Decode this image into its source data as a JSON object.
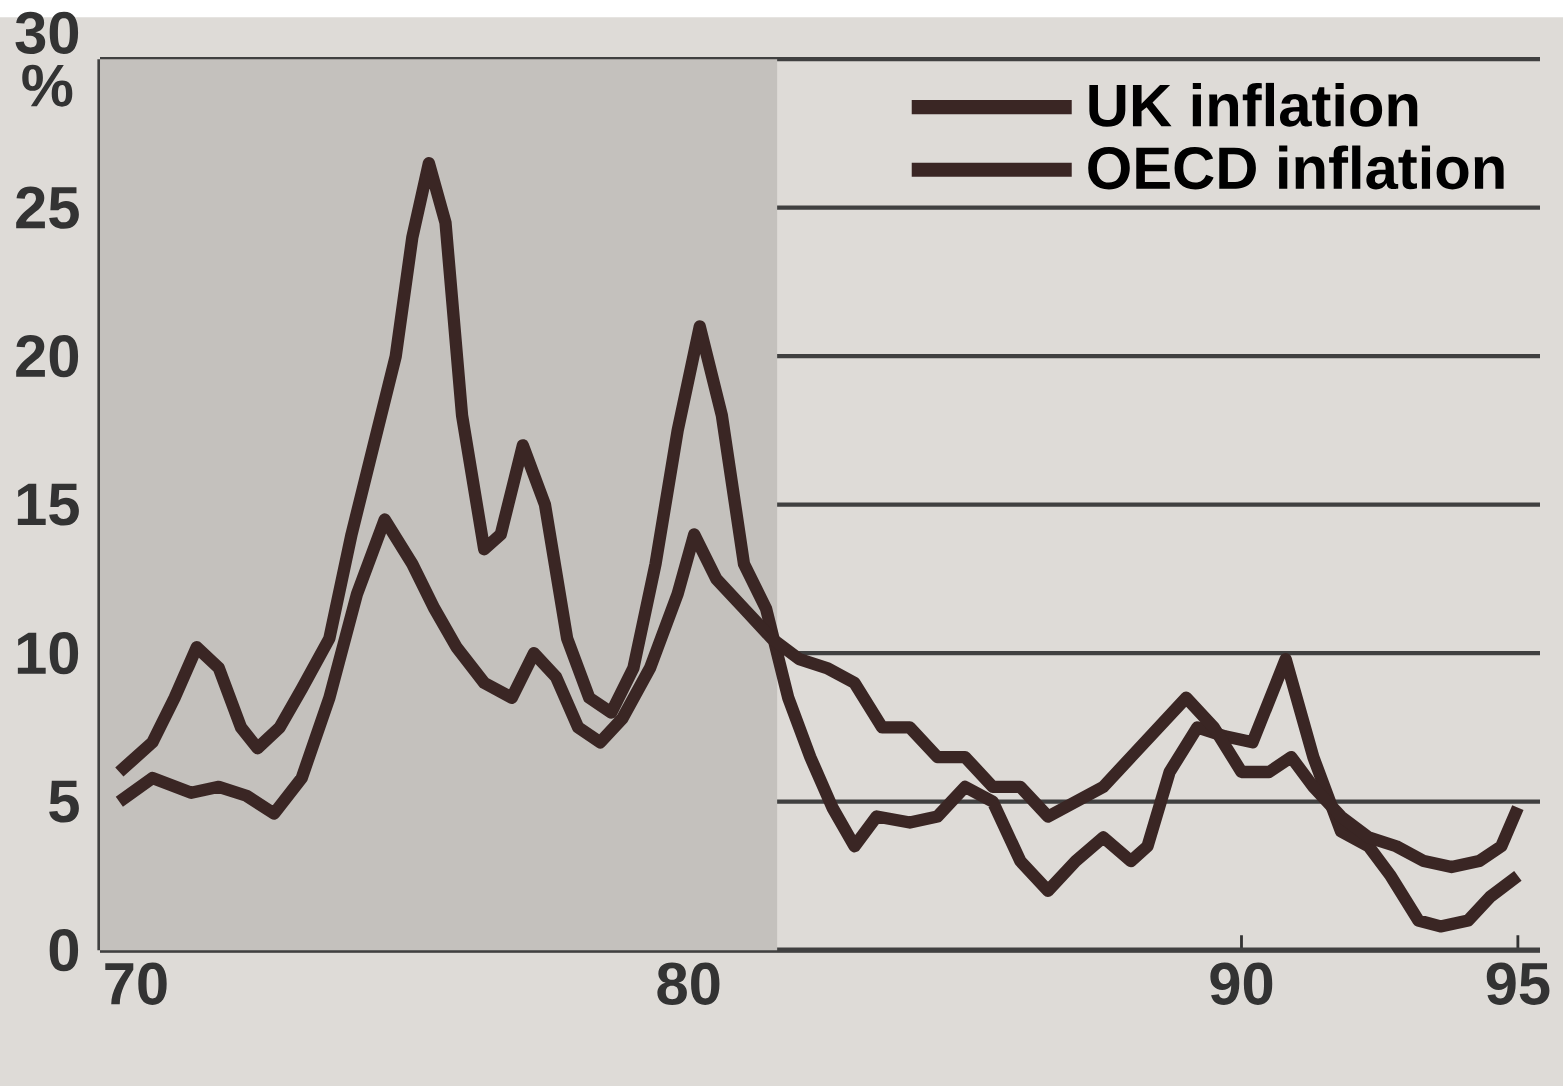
{
  "chart_data": {
    "type": "line",
    "ylabel": "%",
    "xlim": [
      69.35,
      95.4
    ],
    "xticks": [
      70,
      80,
      90,
      95
    ],
    "ylim": [
      0,
      30
    ],
    "yticks": [
      0,
      5,
      10,
      15,
      20,
      25,
      30
    ],
    "grid": "y",
    "legend": "top right",
    "line_style": "solid",
    "marker": "none",
    "bands": [
      {
        "axis": "x",
        "from": 69.35,
        "to": 81.6,
        "color": "#c4c1bd"
      }
    ],
    "series": [
      {
        "name": "UK inflation",
        "color": "#3a2624",
        "x": [
          69.7,
          70.3,
          70.7,
          71.1,
          71.5,
          71.9,
          72.2,
          72.6,
          73.0,
          73.5,
          73.9,
          74.3,
          74.7,
          75.0,
          75.3,
          75.6,
          75.9,
          76.3,
          76.6,
          77.0,
          77.4,
          77.8,
          78.2,
          78.6,
          79.0,
          79.4,
          79.8,
          80.2,
          80.6,
          81.0,
          81.4,
          81.8,
          82.2,
          82.6,
          83.0,
          83.4,
          84.0,
          84.5,
          85.0,
          85.5,
          86.0,
          86.5,
          87.0,
          87.5,
          88.0,
          88.3,
          88.7,
          89.2,
          89.7,
          90.2,
          90.8,
          91.3,
          91.8,
          92.3,
          92.7,
          93.2,
          93.6,
          94.1,
          94.5,
          95.0
        ],
        "values": [
          6.0,
          7.0,
          8.5,
          10.2,
          9.5,
          7.5,
          6.8,
          7.5,
          8.8,
          10.5,
          14.0,
          17.0,
          20.0,
          24.0,
          26.5,
          24.5,
          18.0,
          13.5,
          14.0,
          17.0,
          15.0,
          10.5,
          8.5,
          8.0,
          9.5,
          13.0,
          17.5,
          21.0,
          18.0,
          13.0,
          11.5,
          8.5,
          6.5,
          4.8,
          3.5,
          4.5,
          4.3,
          4.5,
          5.5,
          5.0,
          3.0,
          2.0,
          3.0,
          3.8,
          3.0,
          3.5,
          6.0,
          7.5,
          7.2,
          7.0,
          9.8,
          6.5,
          4.0,
          3.5,
          2.5,
          1.0,
          0.8,
          1.0,
          1.8,
          2.5
        ]
      },
      {
        "name": "OECD inflation",
        "color": "#3a2624",
        "x": [
          69.7,
          70.3,
          71.0,
          71.5,
          72.0,
          72.5,
          73.0,
          73.5,
          74.0,
          74.5,
          75.0,
          75.4,
          75.8,
          76.3,
          76.8,
          77.2,
          77.6,
          78.0,
          78.4,
          78.8,
          79.3,
          79.8,
          80.1,
          80.5,
          81.0,
          81.5,
          82.0,
          82.5,
          83.0,
          83.5,
          84.0,
          84.5,
          85.0,
          85.5,
          86.0,
          86.5,
          87.0,
          87.5,
          88.0,
          88.5,
          89.0,
          89.5,
          90.0,
          90.5,
          90.9,
          91.3,
          91.8,
          92.3,
          92.8,
          93.3,
          93.8,
          94.3,
          94.7,
          95.0
        ],
        "values": [
          5.0,
          5.8,
          5.3,
          5.5,
          5.2,
          4.6,
          5.8,
          8.5,
          12.0,
          14.5,
          13.0,
          11.5,
          10.2,
          9.0,
          8.5,
          10.0,
          9.2,
          7.5,
          7.0,
          7.8,
          9.5,
          12.0,
          14.0,
          12.5,
          11.5,
          10.5,
          9.8,
          9.5,
          9.0,
          7.5,
          7.5,
          6.5,
          6.5,
          5.5,
          5.5,
          4.5,
          5.0,
          5.5,
          6.5,
          7.5,
          8.5,
          7.5,
          6.0,
          6.0,
          6.5,
          5.5,
          4.5,
          3.8,
          3.5,
          3.0,
          2.8,
          3.0,
          3.5,
          4.8
        ]
      }
    ]
  }
}
